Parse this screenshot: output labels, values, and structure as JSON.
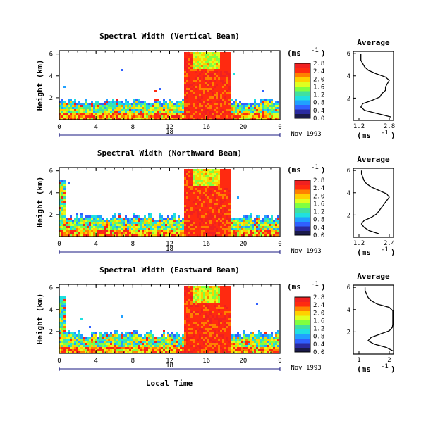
{
  "chart_data": [
    {
      "type": "heatmap",
      "title": "Spectral Width (Vertical Beam)",
      "ylabel": "Height (km)",
      "yticks": [
        "2",
        "4",
        "6"
      ],
      "xticks": [
        "0",
        "4",
        "8",
        "12",
        "16",
        "20",
        "0"
      ],
      "day_label": "18",
      "date_label": "Nov 1993",
      "colorbar_unit": "(ms",
      "colorbar_exp": "-1",
      "colorbar_unit_close": ")",
      "colorbar_ticks": [
        "0.0",
        "0.4",
        "0.8",
        "1.2",
        "1.6",
        "2.0",
        "2.4",
        "2.8"
      ],
      "avg_title": "Average",
      "avg_yticks": [
        "2",
        "4",
        "6"
      ],
      "avg_xticks": [
        "1.2",
        "2.8"
      ],
      "avg_xlabel": "(ms",
      "avg_xlabel_exp": "-1",
      "avg_xlabel_close": ")",
      "avg_profile": {
        "height_km": [
          0.3,
          0.6,
          0.9,
          1.2,
          1.5,
          1.8,
          2.1,
          2.4,
          2.7,
          3.0,
          3.3,
          3.6,
          3.9,
          4.2,
          4.5,
          4.8,
          5.1,
          5.4,
          5.7,
          6.0
        ],
        "width_ms": [
          2.9,
          2.2,
          1.5,
          1.3,
          1.4,
          1.9,
          2.3,
          2.4,
          2.6,
          2.6,
          2.7,
          2.8,
          2.6,
          2.1,
          1.7,
          1.5,
          1.4,
          1.3,
          1.3,
          1.3
        ]
      }
    },
    {
      "type": "heatmap",
      "title": "Spectral Width (Northward Beam)",
      "ylabel": "Height (km)",
      "yticks": [
        "2",
        "4",
        "6"
      ],
      "xticks": [
        "0",
        "4",
        "8",
        "12",
        "16",
        "20",
        "0"
      ],
      "day_label": "18",
      "date_label": "Nov 1993",
      "colorbar_unit": "(ms",
      "colorbar_exp": "-1",
      "colorbar_unit_close": ")",
      "colorbar_ticks": [
        "0.0",
        "0.4",
        "0.8",
        "1.2",
        "1.6",
        "2.0",
        "2.4",
        "2.8"
      ],
      "avg_title": "Average",
      "avg_yticks": [
        "2",
        "4",
        "6"
      ],
      "avg_xticks": [
        "1.2",
        "2.4"
      ],
      "avg_xlabel": "(ms",
      "avg_xlabel_exp": "-1",
      "avg_xlabel_close": ")",
      "avg_profile": {
        "height_km": [
          0.3,
          0.6,
          0.9,
          1.2,
          1.5,
          1.8,
          2.1,
          2.4,
          2.7,
          3.0,
          3.3,
          3.6,
          3.9,
          4.2,
          4.5,
          4.8,
          5.1,
          5.4,
          5.7,
          6.0
        ],
        "width_ms": [
          2.0,
          1.6,
          1.4,
          1.3,
          1.4,
          1.7,
          1.9,
          2.0,
          2.1,
          2.2,
          2.3,
          2.4,
          2.3,
          2.0,
          1.7,
          1.5,
          1.4,
          1.35,
          1.3,
          1.3
        ]
      }
    },
    {
      "type": "heatmap",
      "title": "Spectral Width (Eastward Beam)",
      "ylabel": "Height (km)",
      "yticks": [
        "2",
        "4",
        "6"
      ],
      "xticks": [
        "0",
        "4",
        "8",
        "12",
        "16",
        "20",
        "0"
      ],
      "day_label": "18",
      "date_label": "Nov 1993",
      "xlabel": "Local Time",
      "colorbar_unit": "(ms",
      "colorbar_exp": "-1",
      "colorbar_unit_close": ")",
      "colorbar_ticks": [
        "0.0",
        "0.4",
        "0.8",
        "1.2",
        "1.6",
        "2.0",
        "2.4",
        "2.8"
      ],
      "avg_title": "Average",
      "avg_yticks": [
        "2",
        "4",
        "6"
      ],
      "avg_xticks": [
        "1",
        "2"
      ],
      "avg_xlabel": "(ms",
      "avg_xlabel_exp": "-1",
      "avg_xlabel_close": ")",
      "avg_profile": {
        "height_km": [
          0.3,
          0.6,
          0.9,
          1.2,
          1.5,
          1.8,
          2.1,
          2.4,
          2.7,
          3.0,
          3.3,
          3.6,
          3.9,
          4.2,
          4.5,
          4.8,
          5.1,
          5.4,
          5.7,
          6.0
        ],
        "width_ms": [
          2.5,
          1.9,
          1.5,
          1.3,
          1.4,
          1.7,
          2.0,
          2.1,
          2.3,
          2.4,
          2.5,
          2.6,
          2.4,
          2.0,
          1.6,
          1.4,
          1.3,
          1.25,
          1.2,
          1.2
        ]
      }
    }
  ]
}
